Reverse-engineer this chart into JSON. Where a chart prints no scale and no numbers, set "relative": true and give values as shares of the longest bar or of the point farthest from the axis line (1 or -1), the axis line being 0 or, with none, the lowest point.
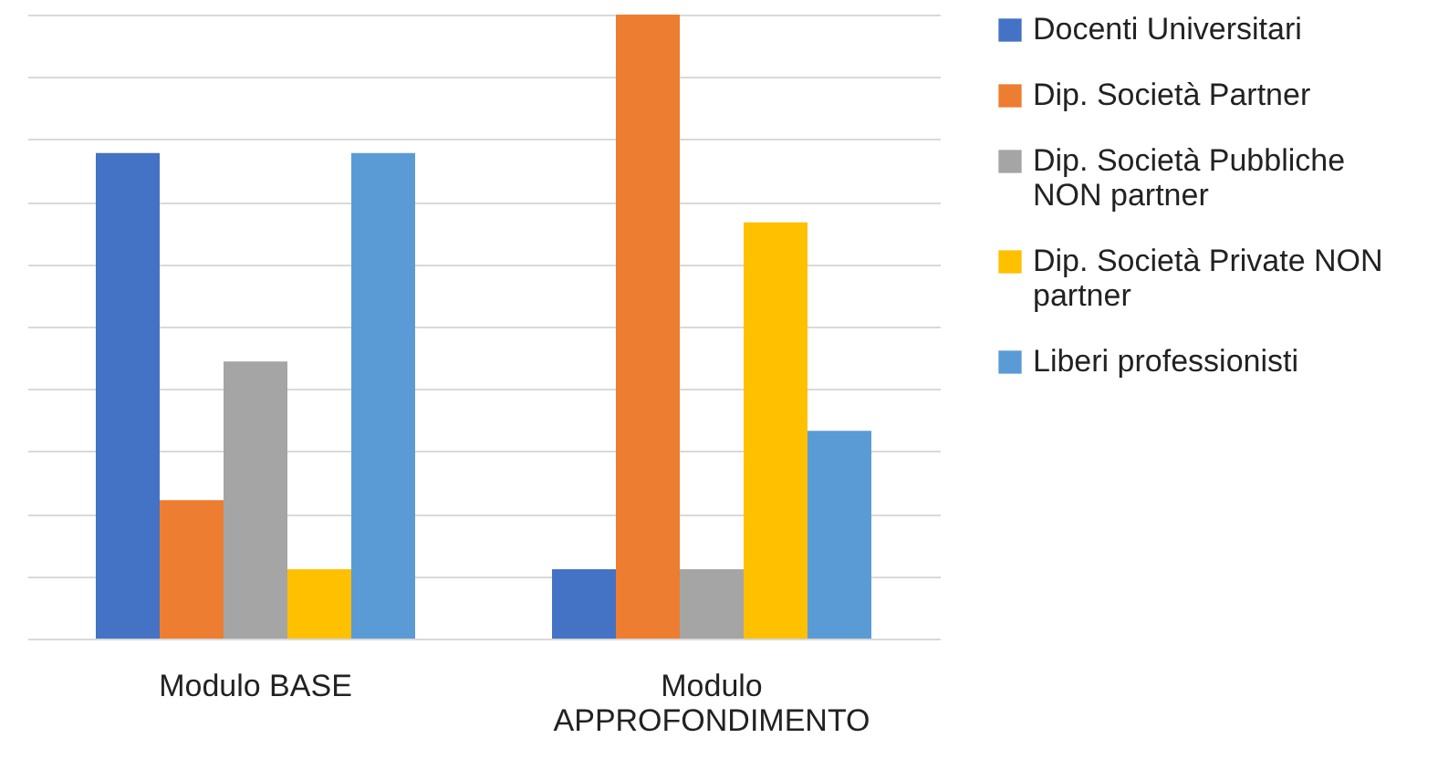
{
  "chart_data": {
    "type": "bar",
    "relative": true,
    "grid": "y",
    "legend": "right",
    "categories": [
      "Modulo BASE",
      "Modulo APPROFONDIMENTO"
    ],
    "series": [
      {
        "name": "Docenti Universitari",
        "color": "#4472c4",
        "values": [
          0.778,
          0.111
        ]
      },
      {
        "name": "Dip. Società Partner",
        "color": "#ed7d31",
        "values": [
          0.222,
          1
        ]
      },
      {
        "name": "Dip. Società Pubbliche NON partner",
        "color": "#a5a5a5",
        "values": [
          0.444,
          0.111
        ]
      },
      {
        "name": "Dip. Società Private NON partner",
        "color": "#ffc000",
        "values": [
          0.111,
          0.667
        ]
      },
      {
        "name": "Liberi professionisti",
        "color": "#5b9bd5",
        "values": [
          0.778,
          0.333
        ]
      }
    ]
  }
}
